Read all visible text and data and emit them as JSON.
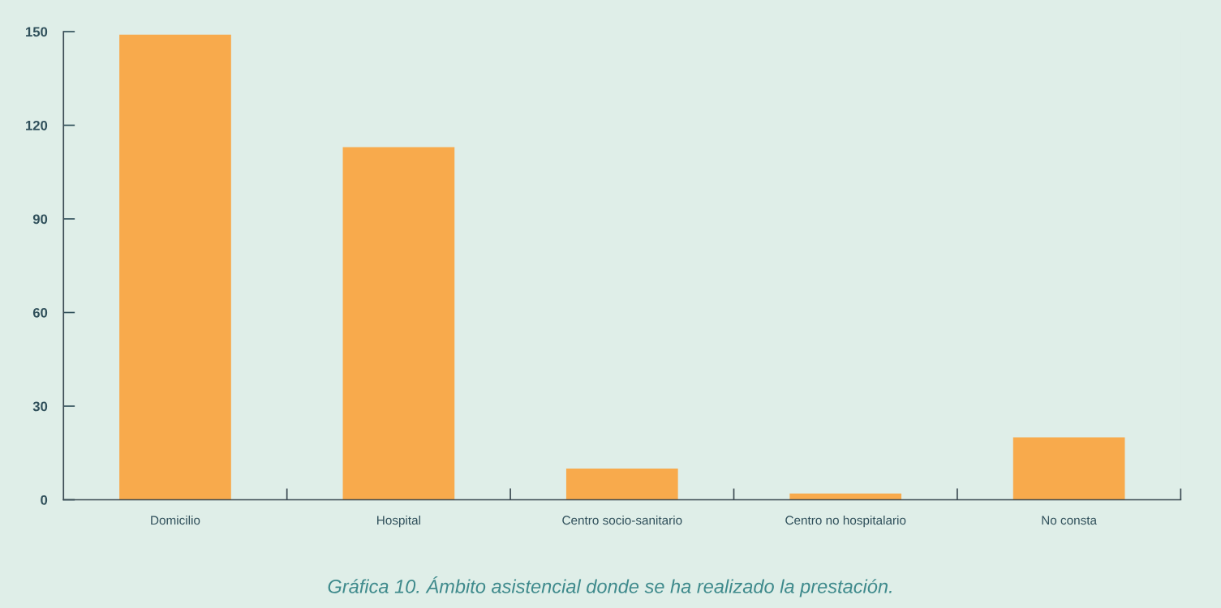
{
  "chart_data": {
    "type": "bar",
    "categories": [
      "Domicilio",
      "Hospital",
      "Centro socio-sanitario",
      "Centro no hospitalario",
      "No consta"
    ],
    "values": [
      149,
      113,
      10,
      2,
      20
    ],
    "color": "#f8aa4c",
    "ylim": [
      0,
      150
    ],
    "yticks": [
      0,
      30,
      60,
      90,
      120,
      150
    ],
    "grid": false,
    "annotations": [
      "Gráfica 10. Ámbito asistencial donde se ha realizado la prestación."
    ]
  }
}
